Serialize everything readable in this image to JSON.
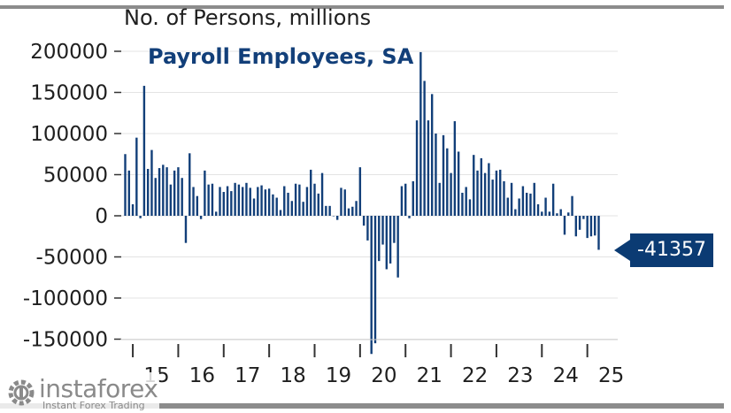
{
  "chart_data": {
    "type": "bar",
    "title": "Payroll Employees, SA",
    "ylabel": "No. of Persons, millions",
    "ylim": [
      -165000,
      210000
    ],
    "yticks": [
      200000,
      150000,
      100000,
      50000,
      0,
      -50000,
      -100000,
      -150000
    ],
    "ytick_labels": [
      "200000",
      "150000",
      "100000",
      "50000",
      "0",
      "-50000",
      "-100000",
      "-150000"
    ],
    "x_start": "2014-11",
    "xticks": [
      {
        "label": "15",
        "index": 2
      },
      {
        "label": "16",
        "index": 14
      },
      {
        "label": "17",
        "index": 26
      },
      {
        "label": "18",
        "index": 38
      },
      {
        "label": "19",
        "index": 50
      },
      {
        "label": "20",
        "index": 62
      },
      {
        "label": "21",
        "index": 74
      },
      {
        "label": "22",
        "index": 86
      },
      {
        "label": "23",
        "index": 98
      },
      {
        "label": "24",
        "index": 110
      },
      {
        "label": "25",
        "index": 122
      }
    ],
    "values": [
      75000,
      55000,
      14000,
      95000,
      -3000,
      158000,
      57000,
      80000,
      46000,
      58000,
      62000,
      59000,
      38000,
      55000,
      59000,
      46000,
      -33000,
      76000,
      35000,
      24000,
      -4000,
      55000,
      38000,
      39000,
      5000,
      35000,
      29000,
      36000,
      30000,
      40000,
      38000,
      35000,
      40000,
      34000,
      21000,
      35000,
      37000,
      32000,
      33000,
      26000,
      22000,
      7000,
      36000,
      28000,
      18000,
      39000,
      38000,
      17000,
      35000,
      56000,
      39000,
      27000,
      52000,
      12000,
      12000,
      0,
      -5000,
      34000,
      32000,
      9000,
      11000,
      18000,
      59000,
      -12000,
      -30000,
      -168000,
      -155000,
      -55000,
      -35000,
      -65000,
      -58000,
      -33000,
      -75000,
      36000,
      39000,
      -3000,
      42000,
      116000,
      199000,
      164000,
      116000,
      148000,
      100000,
      40000,
      98000,
      82000,
      52000,
      115000,
      78000,
      28000,
      35000,
      20000,
      74000,
      55000,
      70000,
      52000,
      64000,
      44000,
      55000,
      56000,
      42000,
      22000,
      40000,
      8000,
      21000,
      36000,
      28000,
      27000,
      40000,
      14000,
      5000,
      22000,
      5000,
      39000,
      3000,
      8000,
      -23000,
      4000,
      24000,
      -25000,
      -17000,
      -4000,
      -27000,
      -25000,
      -24000,
      -41357
    ],
    "annotation": {
      "label": "-41357"
    },
    "bar_color": "#123f79",
    "grid": true
  },
  "watermark": {
    "name": "instaforex",
    "tagline": "Instant Forex Trading"
  }
}
